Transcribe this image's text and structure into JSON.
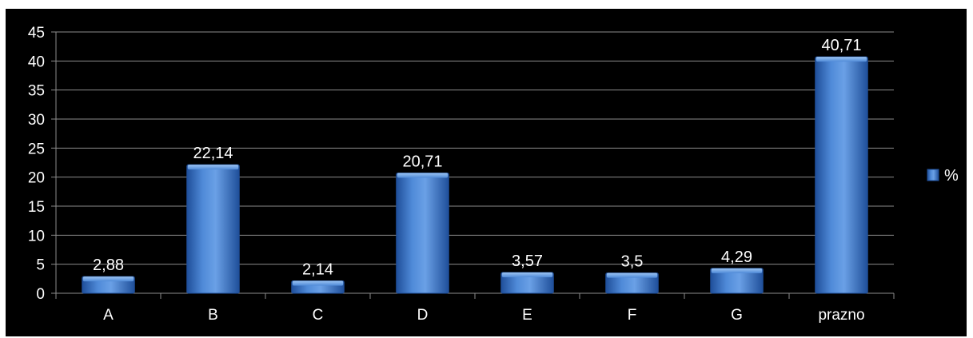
{
  "chart_data": {
    "type": "bar",
    "categories": [
      "A",
      "B",
      "C",
      "D",
      "E",
      "F",
      "G",
      "prazno"
    ],
    "series": [
      {
        "name": "%",
        "values": [
          2.88,
          22.14,
          2.14,
          20.71,
          3.57,
          3.5,
          4.29,
          40.71
        ],
        "labels": [
          "2,88",
          "22,14",
          "2,14",
          "20,71",
          "3,57",
          "3,5",
          "4,29",
          "40,71"
        ]
      }
    ],
    "title": "",
    "xlabel": "",
    "ylabel": "",
    "ylim": [
      0,
      45
    ],
    "yticks": [
      "0",
      "5",
      "10",
      "15",
      "20",
      "25",
      "30",
      "35",
      "40",
      "45"
    ],
    "grid": true,
    "legend_position": "right",
    "colors": {
      "background": "#000000",
      "bar": "#3c78c8",
      "bar_light": "#7fb0ec",
      "bar_dark": "#1f4f9a",
      "grid": "#8c8c8c",
      "text": "#ffffff"
    }
  }
}
